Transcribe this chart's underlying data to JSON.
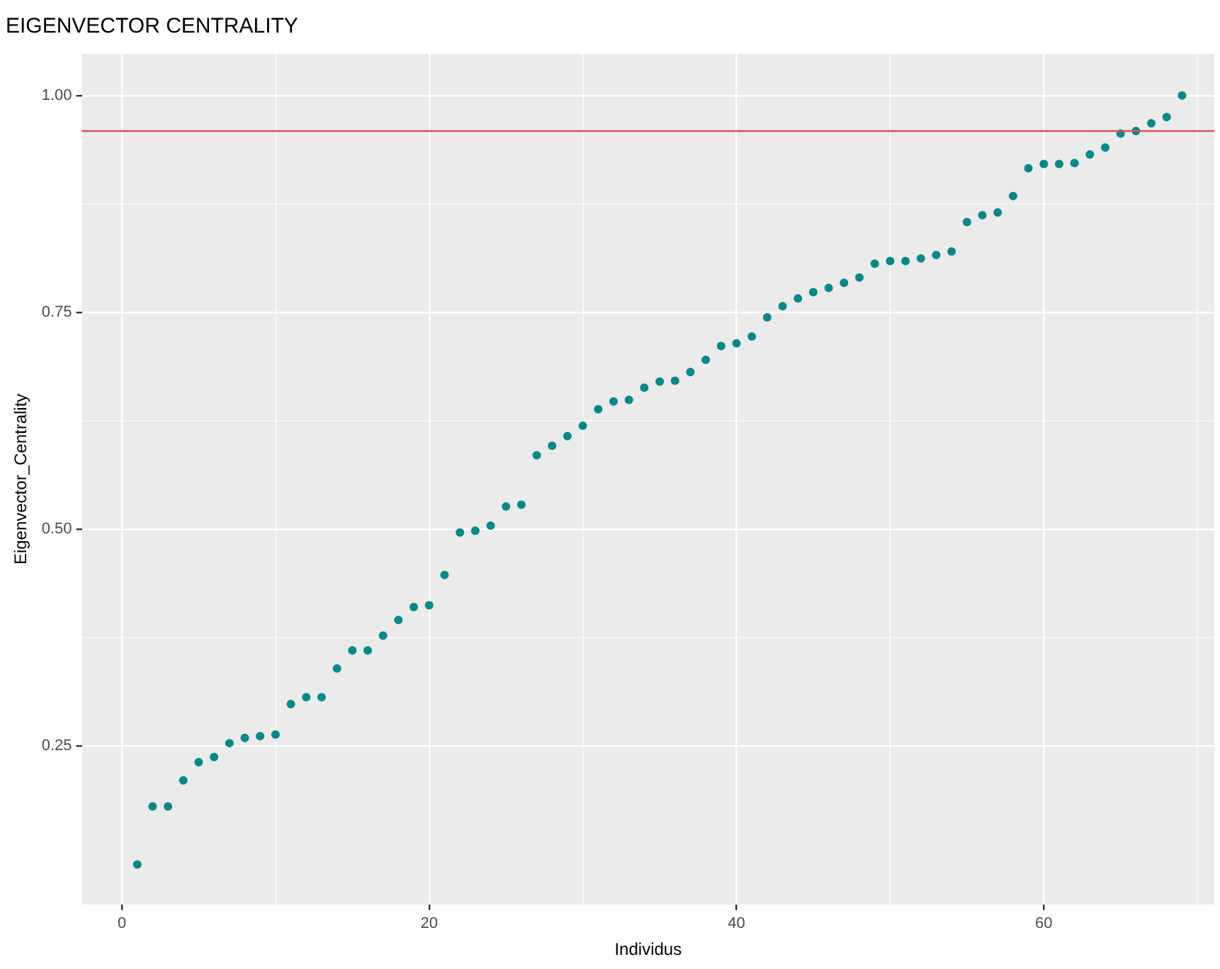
{
  "chart_data": {
    "type": "scatter",
    "title": "EIGENVECTOR CENTRALITY",
    "xlabel": "Individus",
    "ylabel": "Eigenvector_Centrality",
    "x": [
      1,
      2,
      3,
      4,
      5,
      6,
      7,
      8,
      9,
      10,
      11,
      12,
      13,
      14,
      15,
      16,
      17,
      18,
      19,
      20,
      21,
      22,
      23,
      24,
      25,
      26,
      27,
      28,
      29,
      30,
      31,
      32,
      33,
      34,
      35,
      36,
      37,
      38,
      39,
      40,
      41,
      42,
      43,
      44,
      45,
      46,
      47,
      48,
      49,
      50,
      51,
      52,
      53,
      54,
      55,
      56,
      57,
      58,
      59,
      60,
      61,
      62,
      63,
      64,
      65,
      66,
      67,
      68,
      69
    ],
    "series": [
      {
        "color": "#008b8b",
        "values": [
          0.113,
          0.18,
          0.18,
          0.21,
          0.231,
          0.237,
          0.253,
          0.259,
          0.261,
          0.263,
          0.298,
          0.306,
          0.306,
          0.339,
          0.36,
          0.36,
          0.377,
          0.395,
          0.41,
          0.412,
          0.447,
          0.496,
          0.498,
          0.504,
          0.526,
          0.528,
          0.585,
          0.596,
          0.607,
          0.619,
          0.638,
          0.647,
          0.649,
          0.663,
          0.67,
          0.671,
          0.681,
          0.695,
          0.711,
          0.714,
          0.722,
          0.744,
          0.757,
          0.766,
          0.773,
          0.778,
          0.784,
          0.79,
          0.806,
          0.809,
          0.809,
          0.812,
          0.816,
          0.82,
          0.854,
          0.862,
          0.865,
          0.884,
          0.916,
          0.921,
          0.921,
          0.922,
          0.932,
          0.94,
          0.956,
          0.959,
          0.968,
          0.975,
          1.0
        ]
      }
    ],
    "xlim": [
      -2.6,
      71.1
    ],
    "ylim": [
      0.067,
      1.048
    ],
    "xticks": [
      0,
      {
        "value": 10,
        "label": null
      },
      20,
      {
        "value": 30,
        "label": null
      },
      40,
      {
        "value": 50,
        "label": null
      },
      60,
      {
        "value": 70,
        "label": null
      }
    ],
    "yticks": [
      0.25,
      {
        "value": 0.375,
        "label": null
      },
      {
        "value": 0.5,
        "label": "0.50"
      },
      {
        "value": 0.625,
        "label": null
      },
      0.75,
      {
        "value": 0.875,
        "label": null
      },
      {
        "value": 1,
        "label": "1.00"
      }
    ],
    "ref_lines": [
      {
        "axis": "y",
        "value": 0.959,
        "color": "#d9534f"
      }
    ],
    "grid": true,
    "legend": false,
    "marker": "circle"
  }
}
